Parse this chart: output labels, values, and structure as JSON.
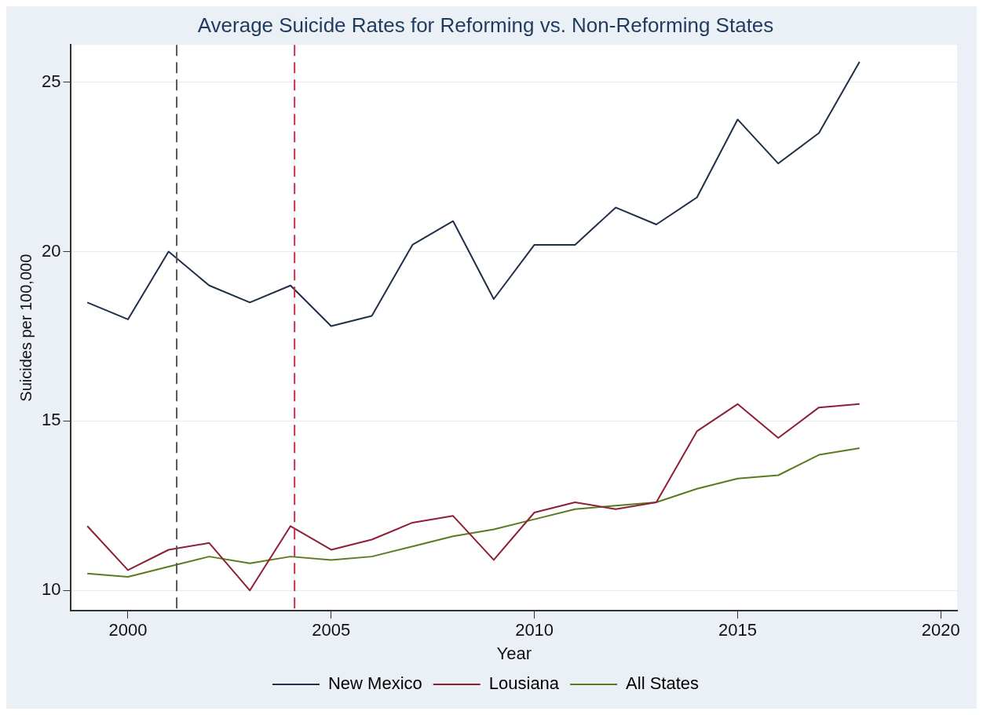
{
  "chart_data": {
    "type": "line",
    "title": "Average Suicide Rates for Reforming vs. Non-Reforming States",
    "xlabel": "Year",
    "ylabel": "Suicides per 100,000",
    "x": [
      1999,
      2000,
      2001,
      2002,
      2003,
      2004,
      2005,
      2006,
      2007,
      2008,
      2009,
      2010,
      2011,
      2012,
      2013,
      2014,
      2015,
      2016,
      2017,
      2018
    ],
    "series": [
      {
        "name": "New Mexico",
        "color": "#1f2f47",
        "values": [
          18.5,
          18.0,
          20.0,
          19.0,
          18.5,
          19.0,
          17.8,
          18.1,
          20.2,
          20.9,
          18.6,
          20.2,
          20.2,
          21.3,
          20.8,
          21.6,
          23.9,
          22.6,
          23.5,
          25.6
        ]
      },
      {
        "name": "Lousiana",
        "color": "#8e1f36",
        "values": [
          11.9,
          10.6,
          11.2,
          11.4,
          10.0,
          11.9,
          11.2,
          11.5,
          12.0,
          12.2,
          10.9,
          12.3,
          12.6,
          12.4,
          12.6,
          14.7,
          15.5,
          14.5,
          15.4,
          15.5
        ]
      },
      {
        "name": "All States",
        "color": "#5b7a1f",
        "values": [
          10.5,
          10.4,
          10.7,
          11.0,
          10.8,
          11.0,
          10.9,
          11.0,
          11.3,
          11.6,
          11.8,
          12.1,
          12.4,
          12.5,
          12.6,
          13.0,
          13.3,
          13.4,
          14.0,
          14.2
        ]
      }
    ],
    "xlim": [
      1998.6,
      2020.4
    ],
    "xticks": [
      2000,
      2005,
      2010,
      2015,
      2020
    ],
    "ylim": [
      9.4,
      26.1
    ],
    "yticks": [
      10,
      15,
      20,
      25
    ],
    "grid": "y",
    "legend": "bottom",
    "line_style": "solid",
    "marker": "none",
    "ref_lines": [
      {
        "axis": "x",
        "value": 2001.2,
        "color": "#555555",
        "line_style": "dashed"
      },
      {
        "axis": "x",
        "value": 2004.1,
        "color": "#c8304a",
        "line_style": "dashed"
      }
    ]
  }
}
